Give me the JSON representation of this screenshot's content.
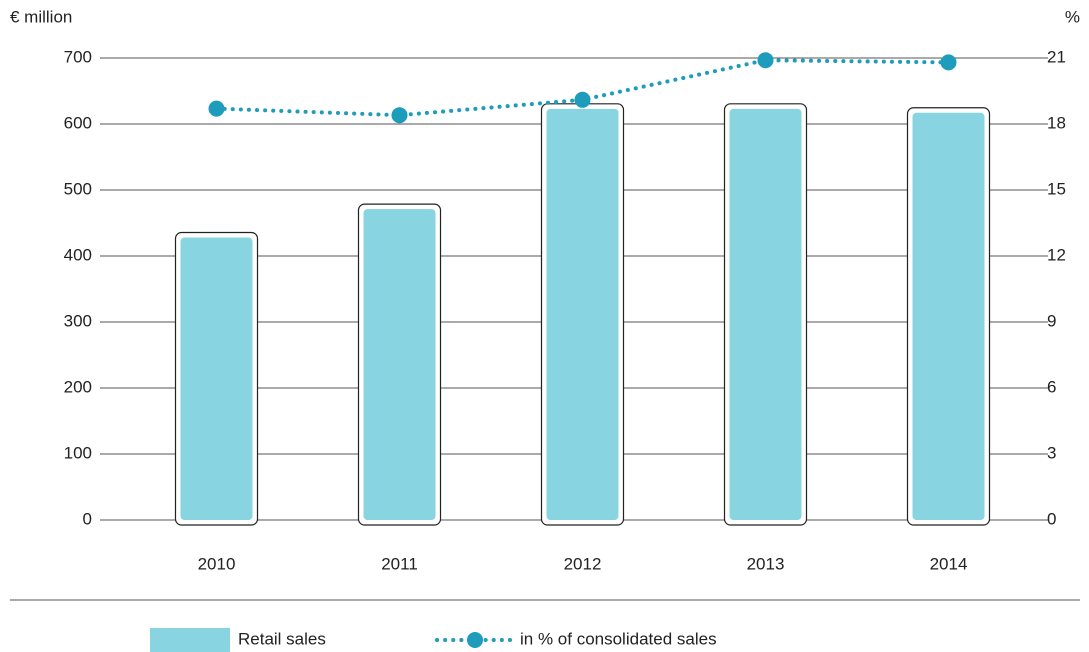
{
  "chart_data": {
    "type": "bar",
    "y_label": "€ million",
    "y2_label": "%",
    "categories": [
      "2010",
      "2011",
      "2012",
      "2013",
      "2014"
    ],
    "series": [
      {
        "name": "Retail sales",
        "type": "bar",
        "color": "#88d4e0",
        "values": [
          428,
          471,
          623,
          623,
          617
        ]
      },
      {
        "name": "in % of consolidated sales",
        "type": "line",
        "axis": "y2",
        "color": "#1e9cbb",
        "values": [
          18.7,
          18.4,
          19.1,
          20.9,
          20.8
        ]
      }
    ],
    "ylim": [
      0,
      700
    ],
    "yticks": [
      0,
      100,
      200,
      300,
      400,
      500,
      600,
      700
    ],
    "y2lim": [
      0,
      21
    ],
    "y2ticks": [
      0,
      3,
      6,
      9,
      12,
      15,
      18,
      21
    ],
    "grid": true
  }
}
